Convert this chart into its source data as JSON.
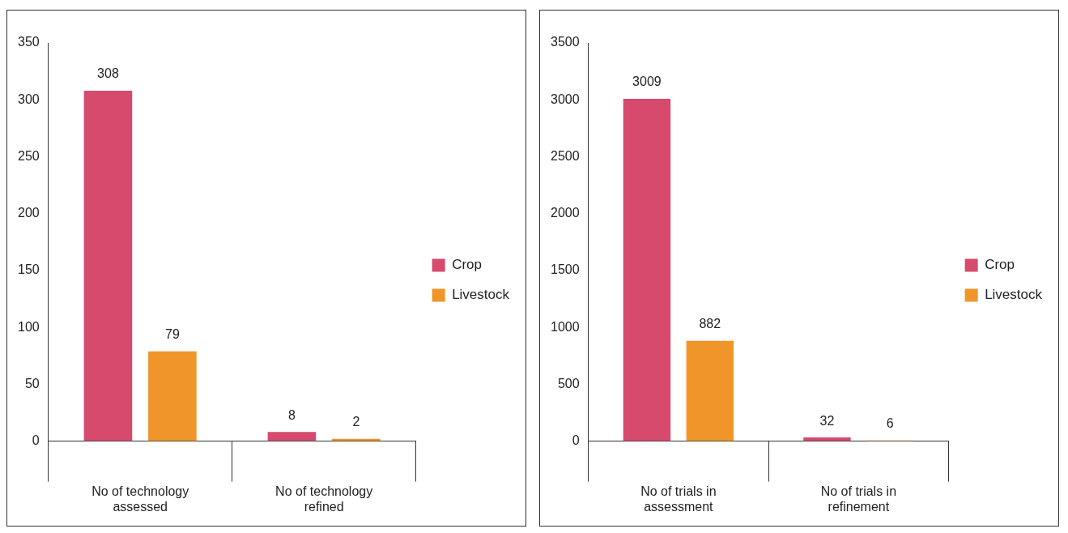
{
  "chart_data": [
    {
      "type": "bar",
      "categories": [
        "No of technology assessed",
        "No of technology refined"
      ],
      "series": [
        {
          "name": "Crop",
          "color": "#d64a6e",
          "values": [
            308,
            8
          ]
        },
        {
          "name": "Livestock",
          "color": "#f0952a",
          "values": [
            79,
            2
          ]
        }
      ],
      "ylim": [
        0,
        350
      ],
      "yticks": [
        0,
        50,
        100,
        150,
        200,
        250,
        300,
        350
      ],
      "grid": false,
      "legend": "right",
      "data_labels": true
    },
    {
      "type": "bar",
      "categories": [
        "No of trials in assessment",
        "No of trials in refinement"
      ],
      "series": [
        {
          "name": "Crop",
          "color": "#d64a6e",
          "values": [
            3009,
            32
          ]
        },
        {
          "name": "Livestock",
          "color": "#f0952a",
          "values": [
            882,
            6
          ]
        }
      ],
      "ylim": [
        0,
        3500
      ],
      "yticks": [
        0,
        500,
        1000,
        1500,
        2000,
        2500,
        3000,
        3500
      ],
      "grid": false,
      "legend": "right",
      "data_labels": true
    }
  ]
}
